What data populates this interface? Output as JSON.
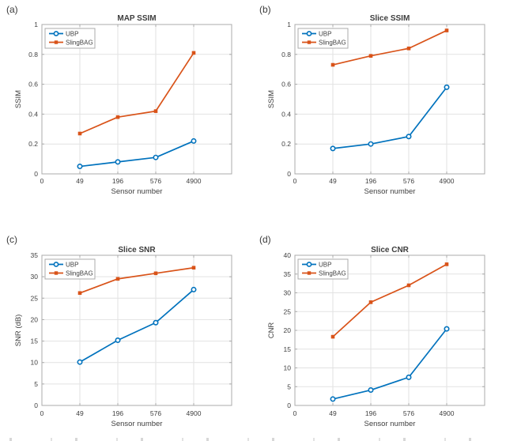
{
  "figure": {
    "background": "#ffffff",
    "x_axis_label": "Sensor number",
    "x_tick_labels": [
      "0",
      "49",
      "196",
      "576",
      "4900"
    ],
    "xtick_positions": [
      0,
      0.2,
      0.4,
      0.6,
      0.8
    ],
    "data_x_positions": [
      0.2,
      0.4,
      0.6,
      0.8
    ],
    "legend_entries": [
      "UBP",
      "SlingBAG"
    ],
    "colors": {
      "ubp_blue": "#0072BD",
      "slingbag_orange": "#D95319",
      "grid": "#e2e2e2",
      "axis_box": "#ababab",
      "text": "#404040",
      "title_text": "#3d3d3d"
    }
  },
  "chart_data": [
    {
      "panel_label": "(a)",
      "type": "line",
      "title": "MAP SSIM",
      "xlabel": "Sensor number",
      "ylabel": "SSIM",
      "x": [
        49,
        196,
        576,
        4900
      ],
      "ylim": [
        0,
        1
      ],
      "yticks": [
        0,
        0.2,
        0.4,
        0.6,
        0.8,
        1
      ],
      "ytick_labels": [
        "0",
        "0.2",
        "0.4",
        "0.6",
        "0.8",
        "1"
      ],
      "grid": true,
      "legend_position": "top-left",
      "series": [
        {
          "name": "UBP",
          "color": "#0072BD",
          "marker": "circle",
          "values": [
            0.05,
            0.08,
            0.11,
            0.22
          ]
        },
        {
          "name": "SlingBAG",
          "color": "#D95319",
          "marker": "square",
          "values": [
            0.27,
            0.38,
            0.42,
            0.81
          ]
        }
      ]
    },
    {
      "panel_label": "(b)",
      "type": "line",
      "title": "Slice SSIM",
      "xlabel": "Sensor number",
      "ylabel": "SSIM",
      "x": [
        49,
        196,
        576,
        4900
      ],
      "ylim": [
        0,
        1
      ],
      "yticks": [
        0,
        0.2,
        0.4,
        0.6,
        0.8,
        1
      ],
      "ytick_labels": [
        "0",
        "0.2",
        "0.4",
        "0.6",
        "0.8",
        "1"
      ],
      "grid": true,
      "legend_position": "top-left",
      "series": [
        {
          "name": "UBP",
          "color": "#0072BD",
          "marker": "circle",
          "values": [
            0.17,
            0.2,
            0.25,
            0.58
          ]
        },
        {
          "name": "SlingBAG",
          "color": "#D95319",
          "marker": "square",
          "values": [
            0.73,
            0.79,
            0.84,
            0.96
          ]
        }
      ]
    },
    {
      "panel_label": "(c)",
      "type": "line",
      "title": "Slice SNR",
      "xlabel": "Sensor number",
      "ylabel": "SNR (dB)",
      "x": [
        49,
        196,
        576,
        4900
      ],
      "ylim": [
        0,
        35
      ],
      "yticks": [
        0,
        5,
        10,
        15,
        20,
        25,
        30,
        35
      ],
      "ytick_labels": [
        "0",
        "5",
        "10",
        "15",
        "20",
        "25",
        "30",
        "35"
      ],
      "grid": true,
      "legend_position": "top-left",
      "series": [
        {
          "name": "UBP",
          "color": "#0072BD",
          "marker": "circle",
          "values": [
            10.1,
            15.2,
            19.3,
            27
          ]
        },
        {
          "name": "SlingBAG",
          "color": "#D95319",
          "marker": "square",
          "values": [
            26.2,
            29.5,
            30.8,
            32.1
          ]
        }
      ]
    },
    {
      "panel_label": "(d)",
      "type": "line",
      "title": "Slice CNR",
      "xlabel": "Sensor number",
      "ylabel": "CNR",
      "x": [
        49,
        196,
        576,
        4900
      ],
      "ylim": [
        0,
        40
      ],
      "yticks": [
        0,
        5,
        10,
        15,
        20,
        25,
        30,
        35,
        40
      ],
      "ytick_labels": [
        "0",
        "5",
        "10",
        "15",
        "20",
        "25",
        "30",
        "35",
        "40"
      ],
      "grid": true,
      "legend_position": "top-left",
      "series": [
        {
          "name": "UBP",
          "color": "#0072BD",
          "marker": "circle",
          "values": [
            1.7,
            4.1,
            7.5,
            20.4
          ]
        },
        {
          "name": "SlingBAG",
          "color": "#D95319",
          "marker": "square",
          "values": [
            18.3,
            27.5,
            32,
            37.6
          ]
        }
      ]
    }
  ]
}
